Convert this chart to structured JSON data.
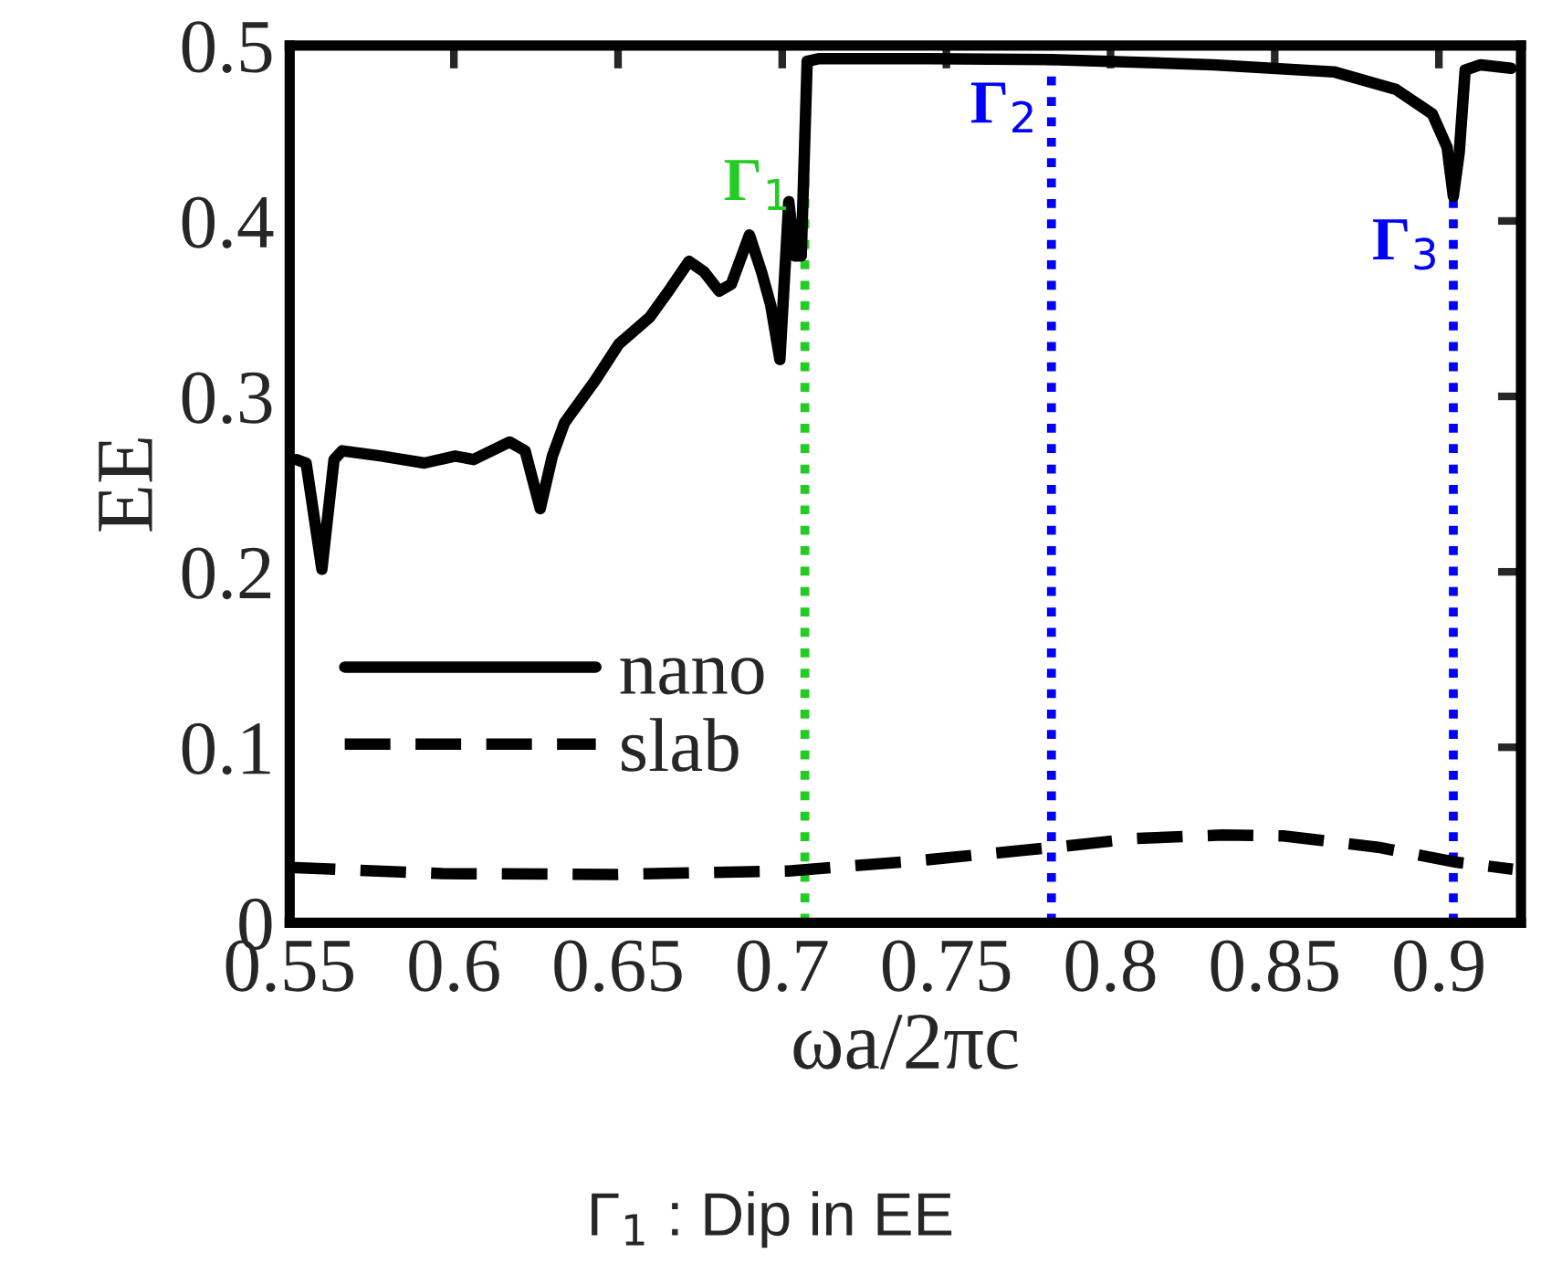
{
  "chart_data": {
    "type": "line",
    "xlabel": "ωa/2πc",
    "ylabel": "EE",
    "xlim": [
      0.55,
      0.925
    ],
    "xticks": [
      0.55,
      0.6,
      0.65,
      0.7,
      0.75,
      0.8,
      0.85,
      0.9
    ],
    "ylim": [
      0,
      0.5
    ],
    "yticks": [
      0,
      0.1,
      0.2,
      0.3,
      0.4,
      0.5
    ],
    "grid": false,
    "legend": "lower left",
    "series": [
      {
        "name": "nano",
        "color": "#000000",
        "line_style": "solid",
        "x": [
          0.552,
          0.555,
          0.5598,
          0.5635,
          0.566,
          0.578,
          0.591,
          0.6004,
          0.606,
          0.617,
          0.6217,
          0.6263,
          0.63,
          0.6337,
          0.643,
          0.6503,
          0.6596,
          0.665,
          0.6716,
          0.6762,
          0.6808,
          0.6845,
          0.69,
          0.6937,
          0.6965,
          0.6993,
          0.702,
          0.7039,
          0.7058,
          0.7076,
          0.7113,
          0.739,
          0.782,
          0.8314,
          0.868,
          0.8869,
          0.898,
          0.9025,
          0.9044,
          0.9062,
          0.908,
          0.9127,
          0.922
        ],
        "values": [
          0.264,
          0.262,
          0.2015,
          0.264,
          0.269,
          0.266,
          0.262,
          0.266,
          0.264,
          0.274,
          0.269,
          0.236,
          0.266,
          0.285,
          0.309,
          0.33,
          0.345,
          0.359,
          0.377,
          0.371,
          0.36,
          0.364,
          0.392,
          0.371,
          0.352,
          0.321,
          0.411,
          0.38,
          0.38,
          0.491,
          0.4925,
          0.4925,
          0.492,
          0.489,
          0.485,
          0.475,
          0.461,
          0.442,
          0.414,
          0.439,
          0.486,
          0.489,
          0.487
        ]
      },
      {
        "name": "slab",
        "color": "#000000",
        "line_style": "dashed",
        "x": [
          0.55,
          0.5965,
          0.649,
          0.7018,
          0.7417,
          0.7826,
          0.8077,
          0.834,
          0.8526,
          0.8815,
          0.9053,
          0.9225
        ],
        "values": [
          0.0315,
          0.028,
          0.0275,
          0.0295,
          0.0354,
          0.043,
          0.048,
          0.05,
          0.0495,
          0.043,
          0.0345,
          0.0305
        ]
      }
    ],
    "ref_lines": [
      {
        "axis": "x",
        "value": 0.7069,
        "label": "Γ$_{1}$",
        "color": "#22cc22",
        "line_style": "dotted"
      },
      {
        "axis": "x",
        "value": 0.782,
        "label": "Γ$_{2}$",
        "color": "#0000ff",
        "line_style": "dotted"
      },
      {
        "axis": "x",
        "value": 0.9044,
        "label": "Γ$_{3}$",
        "color": "#0000ff",
        "line_style": "dotted"
      }
    ],
    "annotations": [
      "Γ$_{1}$ : Dip in EE"
    ]
  }
}
